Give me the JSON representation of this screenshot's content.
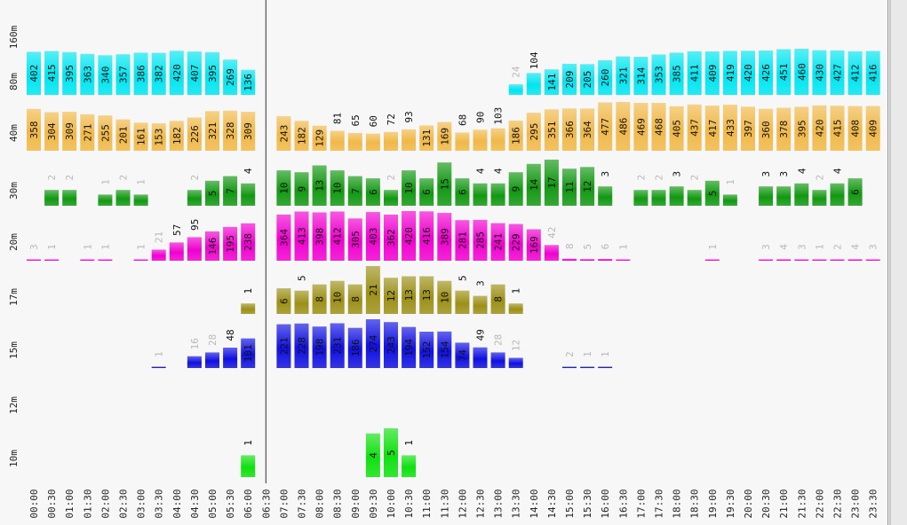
{
  "chart_data": {
    "type": "bar",
    "times": [
      "00:00",
      "00:30",
      "01:00",
      "01:30",
      "02:00",
      "02:30",
      "03:00",
      "03:30",
      "04:00",
      "04:30",
      "05:00",
      "05:30",
      "06:00",
      "06:30",
      "07:00",
      "07:30",
      "08:00",
      "08:30",
      "09:00",
      "09:30",
      "10:00",
      "10:30",
      "11:00",
      "11:30",
      "12:00",
      "12:30",
      "13:00",
      "13:30",
      "14:00",
      "14:30",
      "15:00",
      "15:30",
      "16:00",
      "16:30",
      "17:00",
      "17:30",
      "18:00",
      "18:30",
      "19:00",
      "19:30",
      "20:00",
      "20:30",
      "21:00",
      "21:30",
      "22:00",
      "22:30",
      "23:00",
      "23:30"
    ],
    "now_marker": "06:30",
    "series": [
      {
        "name": "80m",
        "color": "#00e5f0",
        "values": [
          402,
          415,
          395,
          363,
          340,
          357,
          386,
          382,
          420,
          407,
          395,
          269,
          136,
          null,
          null,
          null,
          null,
          null,
          null,
          null,
          null,
          null,
          null,
          null,
          null,
          null,
          null,
          24,
          104,
          141,
          209,
          205,
          260,
          321,
          314,
          353,
          385,
          411,
          409,
          419,
          420,
          426,
          451,
          460,
          430,
          427,
          412,
          416
        ]
      },
      {
        "name": "40m",
        "color": "#f0b848",
        "values": [
          358,
          304,
          309,
          271,
          255,
          201,
          161,
          153,
          182,
          226,
          321,
          328,
          309,
          null,
          243,
          182,
          129,
          81,
          65,
          60,
          72,
          93,
          131,
          169,
          68,
          90,
          103,
          186,
          295,
          351,
          366,
          364,
          477,
          486,
          469,
          468,
          405,
          437,
          417,
          433,
          397,
          360,
          378,
          395,
          420,
          415,
          408,
          409
        ]
      },
      {
        "name": "30m",
        "color": "#129812",
        "values": [
          null,
          2,
          2,
          null,
          1,
          2,
          1,
          null,
          null,
          2,
          5,
          7,
          4,
          null,
          10,
          9,
          13,
          10,
          7,
          6,
          2,
          10,
          6,
          15,
          6,
          4,
          4,
          9,
          14,
          17,
          11,
          12,
          3,
          null,
          2,
          2,
          3,
          2,
          5,
          1,
          null,
          3,
          3,
          4,
          2,
          4,
          6,
          null
        ]
      },
      {
        "name": "20m",
        "color": "#f000d0",
        "values": [
          3,
          1,
          null,
          1,
          1,
          null,
          1,
          21,
          57,
          95,
          146,
          195,
          238,
          null,
          364,
          413,
          398,
          412,
          305,
          403,
          362,
          420,
          416,
          389,
          281,
          285,
          241,
          229,
          169,
          42,
          8,
          5,
          6,
          1,
          null,
          null,
          null,
          null,
          1,
          null,
          null,
          3,
          4,
          3,
          1,
          2,
          4,
          3
        ]
      },
      {
        "name": "17m",
        "color": "#9c9018",
        "values": [
          null,
          null,
          null,
          null,
          null,
          null,
          null,
          null,
          null,
          null,
          null,
          null,
          1,
          null,
          6,
          5,
          8,
          10,
          8,
          21,
          12,
          13,
          13,
          10,
          5,
          3,
          8,
          1,
          null,
          null,
          null,
          null,
          null,
          null,
          null,
          null,
          null,
          null,
          null,
          null,
          null,
          null,
          null,
          null,
          null,
          null,
          null,
          null
        ]
      },
      {
        "name": "15m",
        "color": "#1010e0",
        "values": [
          null,
          null,
          null,
          null,
          null,
          null,
          null,
          1,
          null,
          16,
          28,
          48,
          101,
          null,
          221,
          228,
          198,
          231,
          186,
          274,
          243,
          194,
          152,
          154,
          74,
          49,
          28,
          12,
          null,
          null,
          2,
          1,
          1,
          null,
          null,
          null,
          null,
          null,
          null,
          null,
          null,
          null,
          null,
          null,
          null,
          null,
          null,
          null
        ]
      },
      {
        "name": "12m",
        "color": "#888888",
        "values": [
          null,
          null,
          null,
          null,
          null,
          null,
          null,
          null,
          null,
          null,
          null,
          null,
          null,
          null,
          null,
          null,
          null,
          null,
          null,
          null,
          null,
          null,
          null,
          null,
          null,
          null,
          null,
          null,
          null,
          null,
          null,
          null,
          null,
          null,
          null,
          null,
          null,
          null,
          null,
          null,
          null,
          null,
          null,
          null,
          null,
          null,
          null,
          null
        ]
      },
      {
        "name": "10m",
        "color": "#10e010",
        "values": [
          null,
          null,
          null,
          null,
          null,
          null,
          null,
          null,
          null,
          null,
          null,
          null,
          1,
          null,
          null,
          null,
          null,
          null,
          null,
          4,
          5,
          1,
          null,
          null,
          null,
          null,
          null,
          null,
          null,
          null,
          null,
          null,
          null,
          null,
          null,
          null,
          null,
          null,
          null,
          null,
          null,
          null,
          null,
          null,
          null,
          null,
          null,
          null
        ]
      }
    ],
    "band_labels": [
      "160m",
      "80m",
      "40m",
      "30m",
      "20m",
      "17m",
      "15m",
      "12m",
      "10m"
    ]
  }
}
